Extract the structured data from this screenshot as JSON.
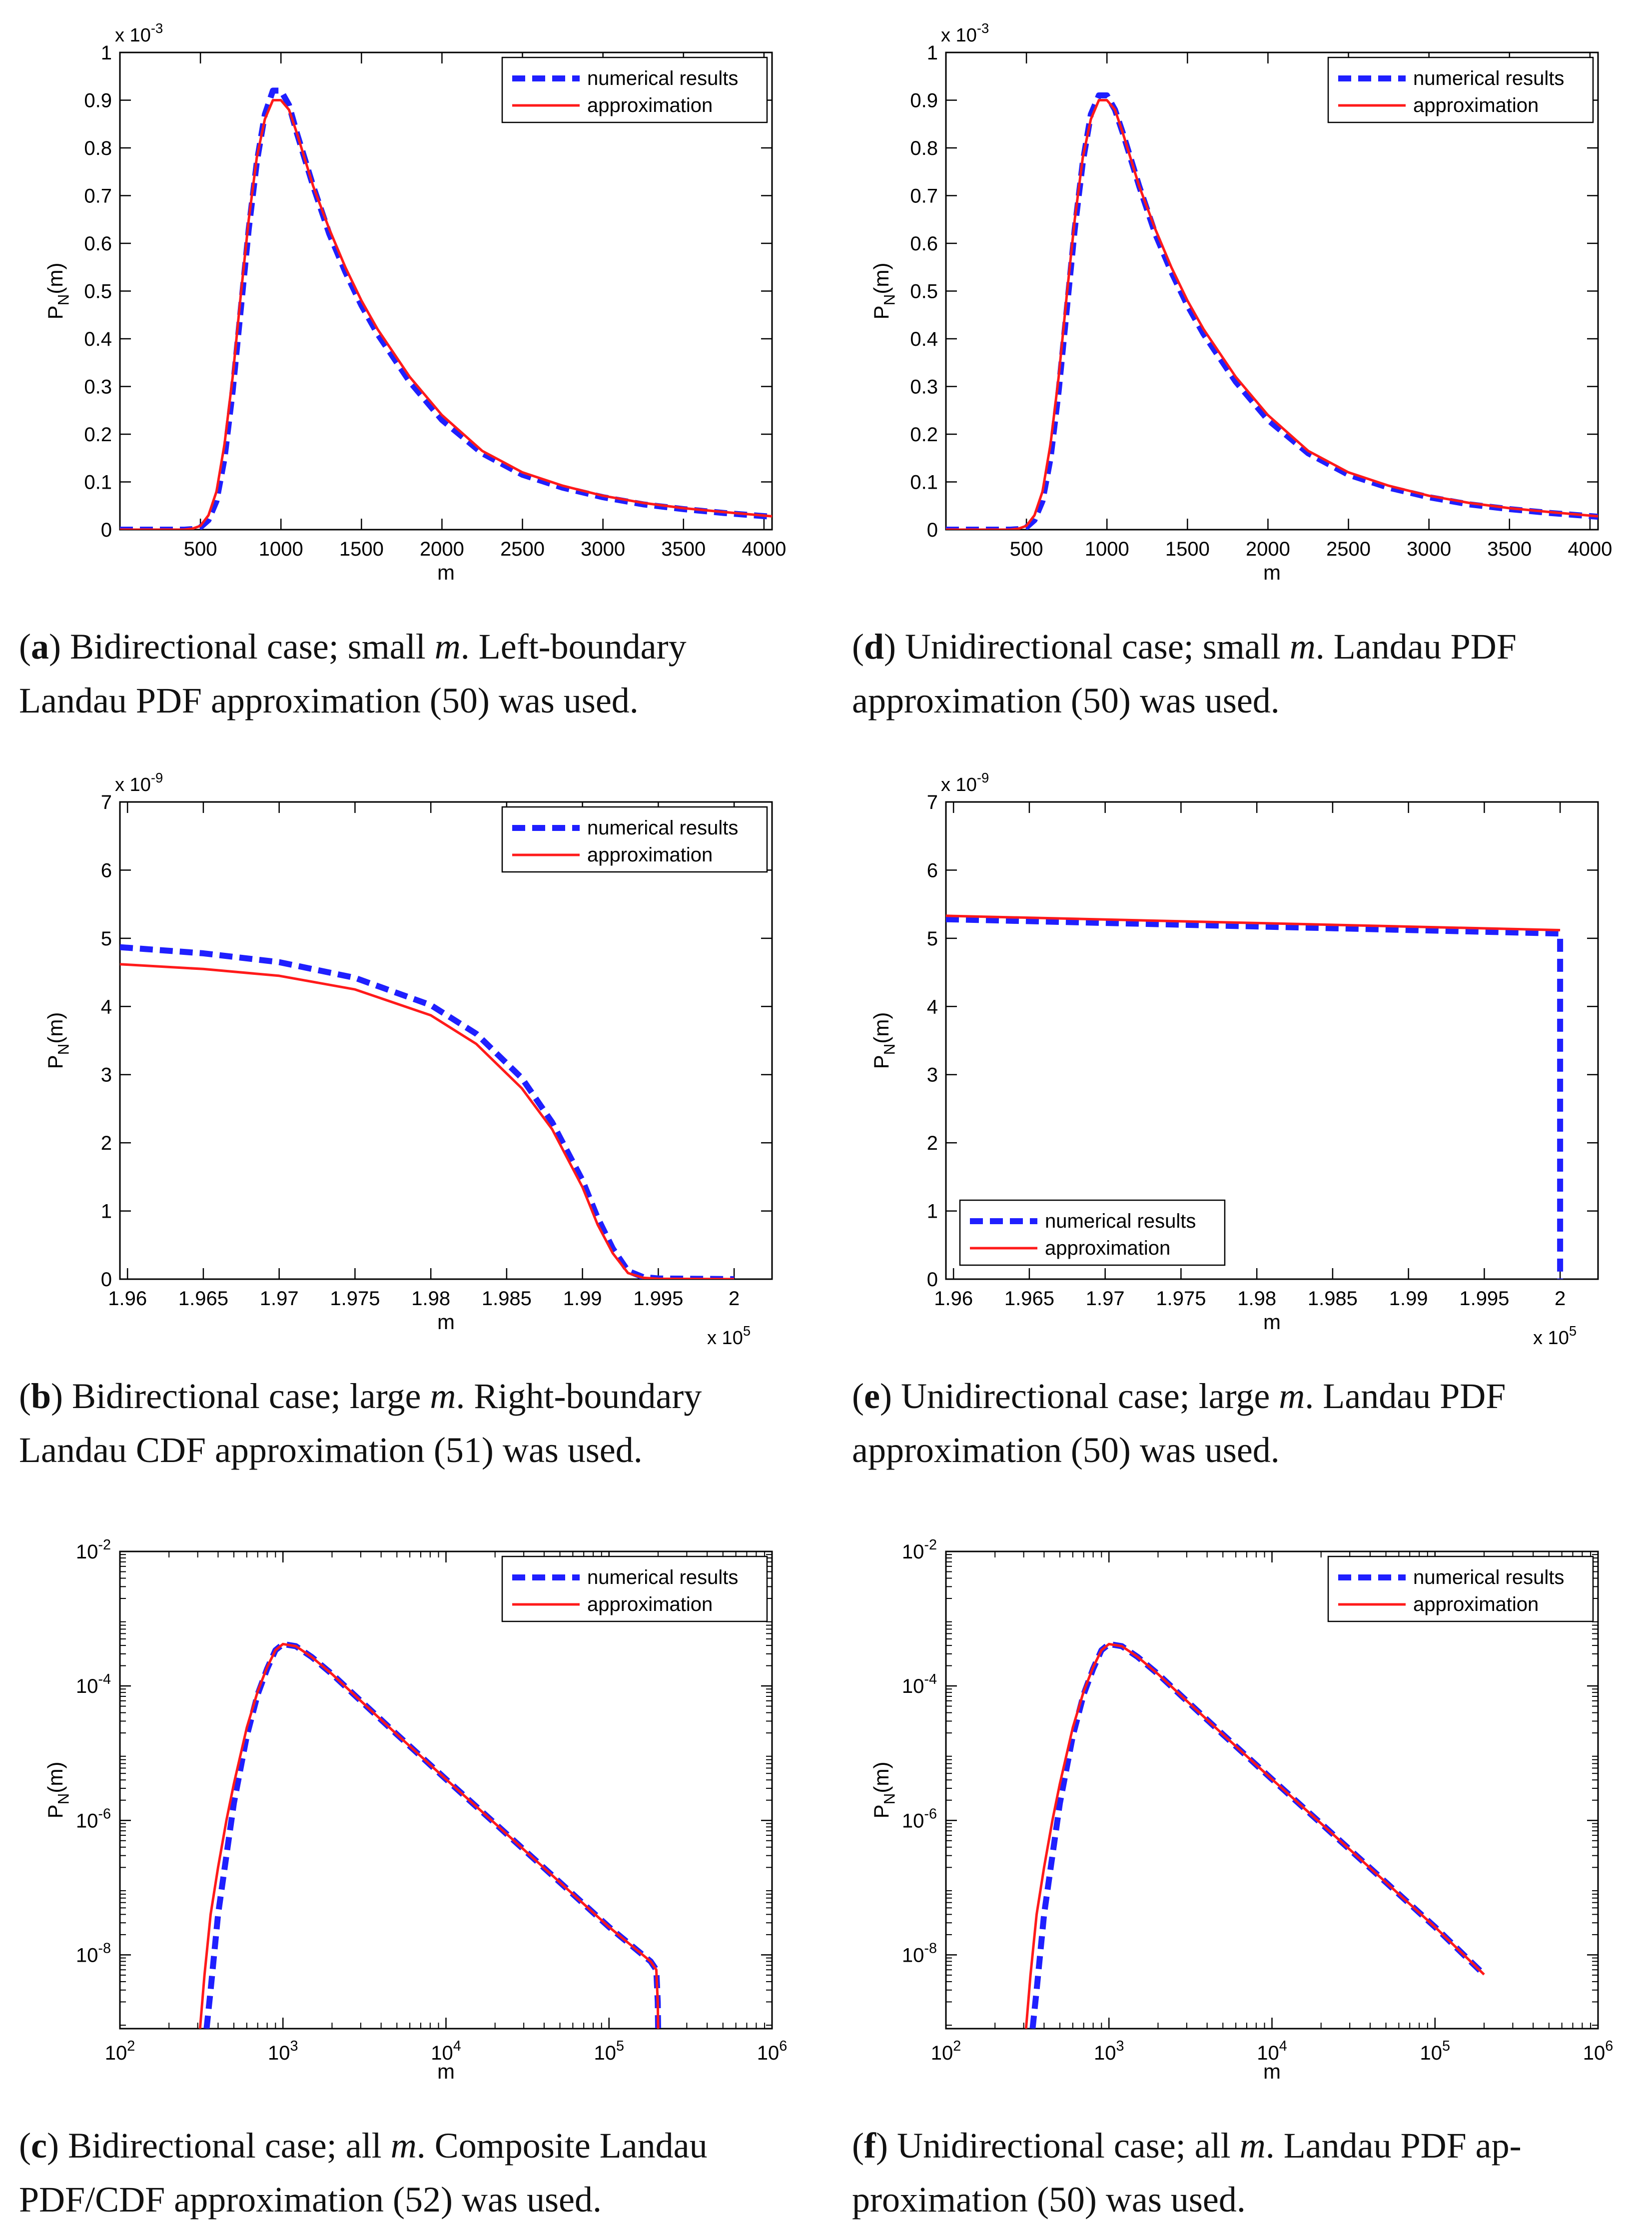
{
  "legend": {
    "numerical": "numerical results",
    "approx": "approximation"
  },
  "colors": {
    "numerical": "#1f1fff",
    "approx": "#ff1a1a",
    "axis": "#000000"
  },
  "chart_data": [
    {
      "id": "a",
      "type": "line",
      "yscale": "linear",
      "xscale": "linear",
      "xlabel": "m",
      "ylabel": "P_N(m)",
      "xlim": [
        0,
        4050
      ],
      "ylim": [
        0,
        0.001
      ],
      "y_exponent_label": "x 10^-3",
      "xticks": [
        500,
        1000,
        1500,
        2000,
        2500,
        3000,
        3500,
        4000
      ],
      "xtick_labels": [
        "500",
        "1000",
        "1500",
        "2000",
        "2500",
        "3000",
        "3500",
        "4000"
      ],
      "yticks": [
        0,
        0.0001,
        0.0002,
        0.0003,
        0.0004,
        0.0005,
        0.0006,
        0.0007,
        0.0008,
        0.0009,
        0.001
      ],
      "ytick_labels": [
        "0",
        "0.1",
        "0.2",
        "0.3",
        "0.4",
        "0.5",
        "0.6",
        "0.7",
        "0.8",
        "0.9",
        "1"
      ],
      "legend_position": "top-right",
      "series": [
        {
          "name": "numerical results",
          "x": [
            0,
            400,
            450,
            500,
            550,
            600,
            650,
            700,
            750,
            800,
            850,
            900,
            950,
            1000,
            1050,
            1100,
            1200,
            1300,
            1400,
            1500,
            1600,
            1800,
            2000,
            2250,
            2500,
            2750,
            3000,
            3250,
            3500,
            3750,
            4050
          ],
          "y": [
            0,
            0,
            1e-06,
            5e-06,
            2e-05,
            6e-05,
            0.00015,
            0.00029,
            0.00046,
            0.00063,
            0.00077,
            0.00087,
            0.00092,
            0.00092,
            0.00089,
            0.00083,
            0.00072,
            0.00062,
            0.00054,
            0.00047,
            0.00041,
            0.00031,
            0.00023,
            0.00016,
            0.000115,
            8.8e-05,
            6.8e-05,
            5.3e-05,
            4.3e-05,
            3.5e-05,
            2.7e-05
          ]
        },
        {
          "name": "approximation",
          "x": [
            0,
            400,
            450,
            500,
            550,
            600,
            650,
            700,
            750,
            800,
            850,
            900,
            950,
            1000,
            1050,
            1100,
            1200,
            1300,
            1400,
            1500,
            1600,
            1800,
            2000,
            2250,
            2500,
            2750,
            3000,
            3250,
            3500,
            3750,
            4050
          ],
          "y": [
            0,
            0,
            2e-06,
            8e-06,
            3e-05,
            8e-05,
            0.00018,
            0.00032,
            0.00049,
            0.00065,
            0.00078,
            0.00086,
            0.0009,
            0.0009,
            0.00088,
            0.00083,
            0.00072,
            0.00063,
            0.00055,
            0.00048,
            0.00042,
            0.00032,
            0.00024,
            0.000165,
            0.00012,
            9.2e-05,
            7.1e-05,
            5.6e-05,
            4.5e-05,
            3.7e-05,
            2.8e-05
          ]
        }
      ]
    },
    {
      "id": "d",
      "type": "line",
      "yscale": "linear",
      "xscale": "linear",
      "xlabel": "m",
      "ylabel": "P_N(m)",
      "xlim": [
        0,
        4050
      ],
      "ylim": [
        0,
        0.001
      ],
      "y_exponent_label": "x 10^-3",
      "xticks": [
        500,
        1000,
        1500,
        2000,
        2500,
        3000,
        3500,
        4000
      ],
      "xtick_labels": [
        "500",
        "1000",
        "1500",
        "2000",
        "2500",
        "3000",
        "3500",
        "4000"
      ],
      "yticks": [
        0,
        0.0001,
        0.0002,
        0.0003,
        0.0004,
        0.0005,
        0.0006,
        0.0007,
        0.0008,
        0.0009,
        0.001
      ],
      "ytick_labels": [
        "0",
        "0.1",
        "0.2",
        "0.3",
        "0.4",
        "0.5",
        "0.6",
        "0.7",
        "0.8",
        "0.9",
        "1"
      ],
      "legend_position": "top-right",
      "series": [
        {
          "name": "numerical results",
          "x": [
            0,
            400,
            450,
            500,
            550,
            600,
            650,
            700,
            750,
            800,
            850,
            900,
            950,
            1000,
            1050,
            1100,
            1200,
            1300,
            1400,
            1500,
            1600,
            1800,
            2000,
            2250,
            2500,
            2750,
            3000,
            3250,
            3500,
            3750,
            4050
          ],
          "y": [
            0,
            0,
            1e-06,
            5e-06,
            2e-05,
            6e-05,
            0.00015,
            0.00029,
            0.00046,
            0.00063,
            0.00077,
            0.00087,
            0.00091,
            0.00091,
            0.00088,
            0.00083,
            0.00072,
            0.00062,
            0.00054,
            0.00047,
            0.00041,
            0.00031,
            0.00023,
            0.00016,
            0.000115,
            8.8e-05,
            6.8e-05,
            5.3e-05,
            4.3e-05,
            3.5e-05,
            2.7e-05
          ]
        },
        {
          "name": "approximation",
          "x": [
            0,
            400,
            450,
            500,
            550,
            600,
            650,
            700,
            750,
            800,
            850,
            900,
            950,
            1000,
            1050,
            1100,
            1200,
            1300,
            1400,
            1500,
            1600,
            1800,
            2000,
            2250,
            2500,
            2750,
            3000,
            3250,
            3500,
            3750,
            4050
          ],
          "y": [
            0,
            0,
            2e-06,
            8e-06,
            3e-05,
            8e-05,
            0.00018,
            0.00032,
            0.00049,
            0.00065,
            0.00078,
            0.00086,
            0.0009,
            0.0009,
            0.00088,
            0.00083,
            0.00072,
            0.00063,
            0.00055,
            0.00048,
            0.00042,
            0.00032,
            0.00024,
            0.000165,
            0.00012,
            9.2e-05,
            7.1e-05,
            5.6e-05,
            4.5e-05,
            3.7e-05,
            2.8e-05
          ]
        }
      ]
    },
    {
      "id": "b",
      "type": "line",
      "yscale": "linear",
      "xscale": "linear",
      "xlabel": "m",
      "ylabel": "P_N(m)",
      "xlim": [
        195950,
        200250
      ],
      "ylim": [
        0,
        7e-09
      ],
      "y_exponent_label": "x 10^-9",
      "x_exponent_label": "x 10^5",
      "xticks": [
        196000,
        196500,
        197000,
        197500,
        198000,
        198500,
        199000,
        199500,
        200000
      ],
      "xtick_labels": [
        "1.96",
        "1.965",
        "1.97",
        "1.975",
        "1.98",
        "1.985",
        "1.99",
        "1.995",
        "2"
      ],
      "yticks": [
        0,
        1e-09,
        2e-09,
        3e-09,
        4e-09,
        5e-09,
        6e-09,
        7e-09
      ],
      "ytick_labels": [
        "0",
        "1",
        "2",
        "3",
        "4",
        "5",
        "6",
        "7"
      ],
      "legend_position": "top-right",
      "series": [
        {
          "name": "numerical results",
          "x": [
            195950,
            196500,
            197000,
            197500,
            198000,
            198300,
            198600,
            198800,
            199000,
            199100,
            199200,
            199300,
            199400,
            199500,
            200000
          ],
          "y": [
            4.87e-09,
            4.78e-09,
            4.65e-09,
            4.42e-09,
            4.02e-09,
            3.6e-09,
            2.95e-09,
            2.3e-09,
            1.45e-09,
            9e-10,
            4.5e-10,
            1.2e-10,
            3e-11,
            1e-11,
            0
          ]
        },
        {
          "name": "approximation",
          "x": [
            195950,
            196500,
            197000,
            197500,
            198000,
            198300,
            198600,
            198800,
            199000,
            199100,
            199200,
            199300,
            199400,
            199500,
            200000
          ],
          "y": [
            4.62e-09,
            4.55e-09,
            4.45e-09,
            4.25e-09,
            3.87e-09,
            3.45e-09,
            2.8e-09,
            2.2e-09,
            1.35e-09,
            8e-10,
            3.8e-10,
            9e-11,
            2e-11,
            5e-12,
            0
          ]
        }
      ]
    },
    {
      "id": "e",
      "type": "line",
      "yscale": "linear",
      "xscale": "linear",
      "xlabel": "m",
      "ylabel": "P_N(m)",
      "xlim": [
        195950,
        200250
      ],
      "ylim": [
        0,
        7e-09
      ],
      "y_exponent_label": "x 10^-9",
      "x_exponent_label": "x 10^5",
      "xticks": [
        196000,
        196500,
        197000,
        197500,
        198000,
        198500,
        199000,
        199500,
        200000
      ],
      "xtick_labels": [
        "1.96",
        "1.965",
        "1.97",
        "1.975",
        "1.98",
        "1.985",
        "1.99",
        "1.995",
        "2"
      ],
      "yticks": [
        0,
        1e-09,
        2e-09,
        3e-09,
        4e-09,
        5e-09,
        6e-09,
        7e-09
      ],
      "ytick_labels": [
        "0",
        "1",
        "2",
        "3",
        "4",
        "5",
        "6",
        "7"
      ],
      "legend_position": "bottom-left",
      "series": [
        {
          "name": "numerical results",
          "x": [
            195950,
            200000,
            200000
          ],
          "y": [
            5.28e-09,
            5.07e-09,
            0
          ]
        },
        {
          "name": "approximation",
          "x": [
            195950,
            200000
          ],
          "y": [
            5.33e-09,
            5.12e-09
          ]
        }
      ]
    },
    {
      "id": "c",
      "type": "line",
      "yscale": "log",
      "xscale": "log",
      "xlabel": "m",
      "ylabel": "P_N(m)",
      "xlim": [
        100,
        1000000
      ],
      "ylim": [
        8e-10,
        0.01
      ],
      "xticks": [
        100,
        1000,
        10000,
        100000,
        1000000
      ],
      "xtick_labels": [
        "10^2",
        "10^3",
        "10^4",
        "10^5",
        "10^6"
      ],
      "yticks": [
        1e-08,
        1e-06,
        0.0001,
        0.01
      ],
      "ytick_labels": [
        "10^-8",
        "10^-6",
        "10^-4",
        "10^-2"
      ],
      "legend_position": "top-right",
      "series": [
        {
          "name": "numerical results",
          "x": [
            340,
            360,
            400,
            450,
            500,
            600,
            700,
            800,
            900,
            1000,
            1200,
            1500,
            2000,
            3000,
            5000,
            10000,
            20000,
            50000,
            100000,
            180000,
            195000,
            199000,
            200000
          ],
          "y": [
            8e-10,
            3e-09,
            4e-08,
            3e-07,
            1.8e-06,
            1.8e-05,
            7.5e-05,
            0.00018,
            0.00034,
            0.00042,
            0.00039,
            0.00027,
            0.00015,
            6e-05,
            1.9e-05,
            4.1e-06,
            9e-07,
            1.2e-07,
            2.6e-08,
            8e-09,
            6e-09,
            2e-09,
            8e-10
          ]
        },
        {
          "name": "approximation",
          "x": [
            310,
            330,
            360,
            400,
            450,
            500,
            600,
            700,
            800,
            900,
            1000,
            1200,
            1500,
            2000,
            3000,
            5000,
            10000,
            20000,
            50000,
            100000,
            180000,
            195000,
            199000,
            200000
          ],
          "y": [
            8e-10,
            5e-09,
            4e-08,
            2e-07,
            1e-06,
            3.5e-06,
            2.4e-05,
            8.3e-05,
            0.00019,
            0.00034,
            0.00042,
            0.00039,
            0.00027,
            0.00015,
            6e-05,
            1.9e-05,
            4.1e-06,
            9e-07,
            1.2e-07,
            2.6e-08,
            8e-09,
            6e-09,
            2e-09,
            8e-10
          ]
        }
      ]
    },
    {
      "id": "f",
      "type": "line",
      "yscale": "log",
      "xscale": "log",
      "xlabel": "m",
      "ylabel": "P_N(m)",
      "xlim": [
        100,
        1000000
      ],
      "ylim": [
        8e-10,
        0.01
      ],
      "xticks": [
        100,
        1000,
        10000,
        100000,
        1000000
      ],
      "xtick_labels": [
        "10^2",
        "10^3",
        "10^4",
        "10^5",
        "10^6"
      ],
      "yticks": [
        1e-08,
        1e-06,
        0.0001,
        0.01
      ],
      "ytick_labels": [
        "10^-8",
        "10^-6",
        "10^-4",
        "10^-2"
      ],
      "legend_position": "top-right",
      "series": [
        {
          "name": "numerical results",
          "x": [
            340,
            360,
            400,
            450,
            500,
            600,
            700,
            800,
            900,
            1000,
            1200,
            1500,
            2000,
            3000,
            5000,
            10000,
            20000,
            50000,
            100000,
            200000
          ],
          "y": [
            8e-10,
            3e-09,
            4e-08,
            3e-07,
            1.8e-06,
            1.8e-05,
            7.5e-05,
            0.00018,
            0.00034,
            0.00042,
            0.00039,
            0.00027,
            0.00015,
            6e-05,
            1.9e-05,
            4.1e-06,
            9e-07,
            1.2e-07,
            2.6e-08,
            5.1e-09
          ]
        },
        {
          "name": "approximation",
          "x": [
            310,
            330,
            360,
            400,
            450,
            500,
            600,
            700,
            800,
            900,
            1000,
            1200,
            1500,
            2000,
            3000,
            5000,
            10000,
            20000,
            50000,
            100000,
            200000
          ],
          "y": [
            8e-10,
            5e-09,
            4e-08,
            2e-07,
            1e-06,
            3.5e-06,
            2.4e-05,
            8.3e-05,
            0.00019,
            0.00034,
            0.00042,
            0.00039,
            0.00027,
            0.00015,
            6e-05,
            1.9e-05,
            4.1e-06,
            9e-07,
            1.2e-07,
            2.6e-08,
            5.1e-09
          ]
        }
      ]
    }
  ],
  "captions": {
    "a": {
      "letter": "a",
      "line1a": " Bidirectional case; small ",
      "var1": "m",
      "line1b": ".  Left-boundary",
      "line2": "Landau PDF approximation (50) was used."
    },
    "d": {
      "letter": "d",
      "line1a": " Unidirectional case; small ",
      "var1": "m",
      "line1b": ".  Landau PDF",
      "line2": "approximation (50) was used."
    },
    "b": {
      "letter": "b",
      "line1a": " Bidirectional case; large ",
      "var1": "m",
      "line1b": ". Right-boundary",
      "line2": "Landau CDF approximation (51) was used."
    },
    "e": {
      "letter": "e",
      "line1a": " Unidirectional case; large ",
      "var1": "m",
      "line1b": ".  Landau PDF",
      "line2": "approximation (50) was used."
    },
    "c": {
      "letter": "c",
      "line1a": " Bidirectional case; all ",
      "var1": "m",
      "line1b": ". Composite Landau",
      "line2": "PDF/CDF approximation (52) was used."
    },
    "f": {
      "letter": "f",
      "line1a": " Unidirectional case; all ",
      "var1": "m",
      "line1b": ".  Landau PDF ap-",
      "line2": "proximation (50) was used."
    }
  }
}
